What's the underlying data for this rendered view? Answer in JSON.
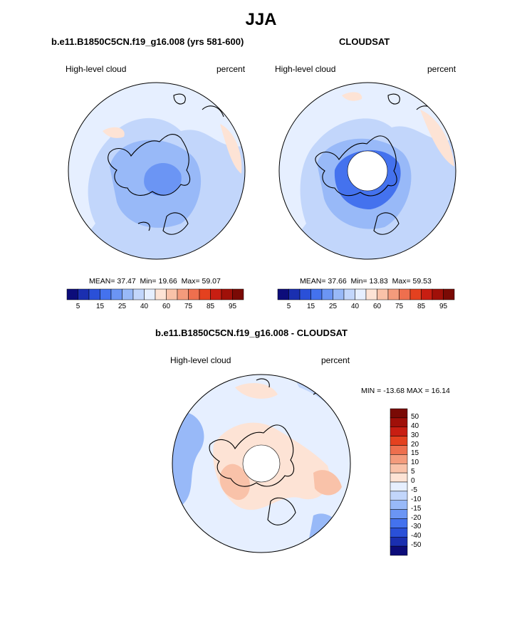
{
  "page": {
    "title": "JJA"
  },
  "palettes": {
    "abs": [
      "#0c0c7a",
      "#1a2fb0",
      "#2a50d8",
      "#4472ee",
      "#6b95f4",
      "#98b9f8",
      "#c2d6fb",
      "#e6efff",
      "#fde3d5",
      "#f9c2a9",
      "#f49b7c",
      "#ee6f4e",
      "#e4411f",
      "#c81e12",
      "#a01009",
      "#7a0a05"
    ],
    "diff": [
      "#0c0c7a",
      "#1a2fb0",
      "#2a50d8",
      "#4472ee",
      "#6b95f4",
      "#98b9f8",
      "#c2d6fb",
      "#e6efff",
      "#fde3d5",
      "#f9c2a9",
      "#f49b7c",
      "#ee6f4e",
      "#e4411f",
      "#c81e12",
      "#a01009",
      "#7a0a05"
    ]
  },
  "chart_data": [
    {
      "type": "heatmap",
      "title": "b.e11.B1850C5CN.f19_g16.008 (yrs 581-600)",
      "left_label": "High-level cloud",
      "right_label": "percent",
      "stats": {
        "mean_label": "MEAN=",
        "mean": "37.47",
        "min_label": "Min=",
        "min": "19.66",
        "max_label": "Max=",
        "max": "59.07"
      },
      "colorbar": {
        "ticks": [
          "5",
          "15",
          "25",
          "40",
          "60",
          "75",
          "85",
          "95"
        ]
      }
    },
    {
      "type": "heatmap",
      "title": "CLOUDSAT",
      "left_label": "High-level cloud",
      "right_label": "percent",
      "stats": {
        "mean_label": "MEAN=",
        "mean": "37.66",
        "min_label": "Min=",
        "min": "13.83",
        "max_label": "Max=",
        "max": "59.53"
      },
      "colorbar": {
        "ticks": [
          "5",
          "15",
          "25",
          "40",
          "60",
          "75",
          "85",
          "95"
        ]
      }
    },
    {
      "type": "heatmap",
      "title": "b.e11.B1850C5CN.f19_g16.008 - CLOUDSAT",
      "left_label": "High-level cloud",
      "right_label": "percent",
      "stats_line": "MIN = -13.68 MAX =  16.14",
      "colorbar": {
        "ticks": [
          "50",
          "40",
          "30",
          "20",
          "15",
          "10",
          "5",
          "0",
          "-5",
          "-10",
          "-15",
          "-20",
          "-30",
          "-40",
          "-50"
        ]
      }
    }
  ]
}
